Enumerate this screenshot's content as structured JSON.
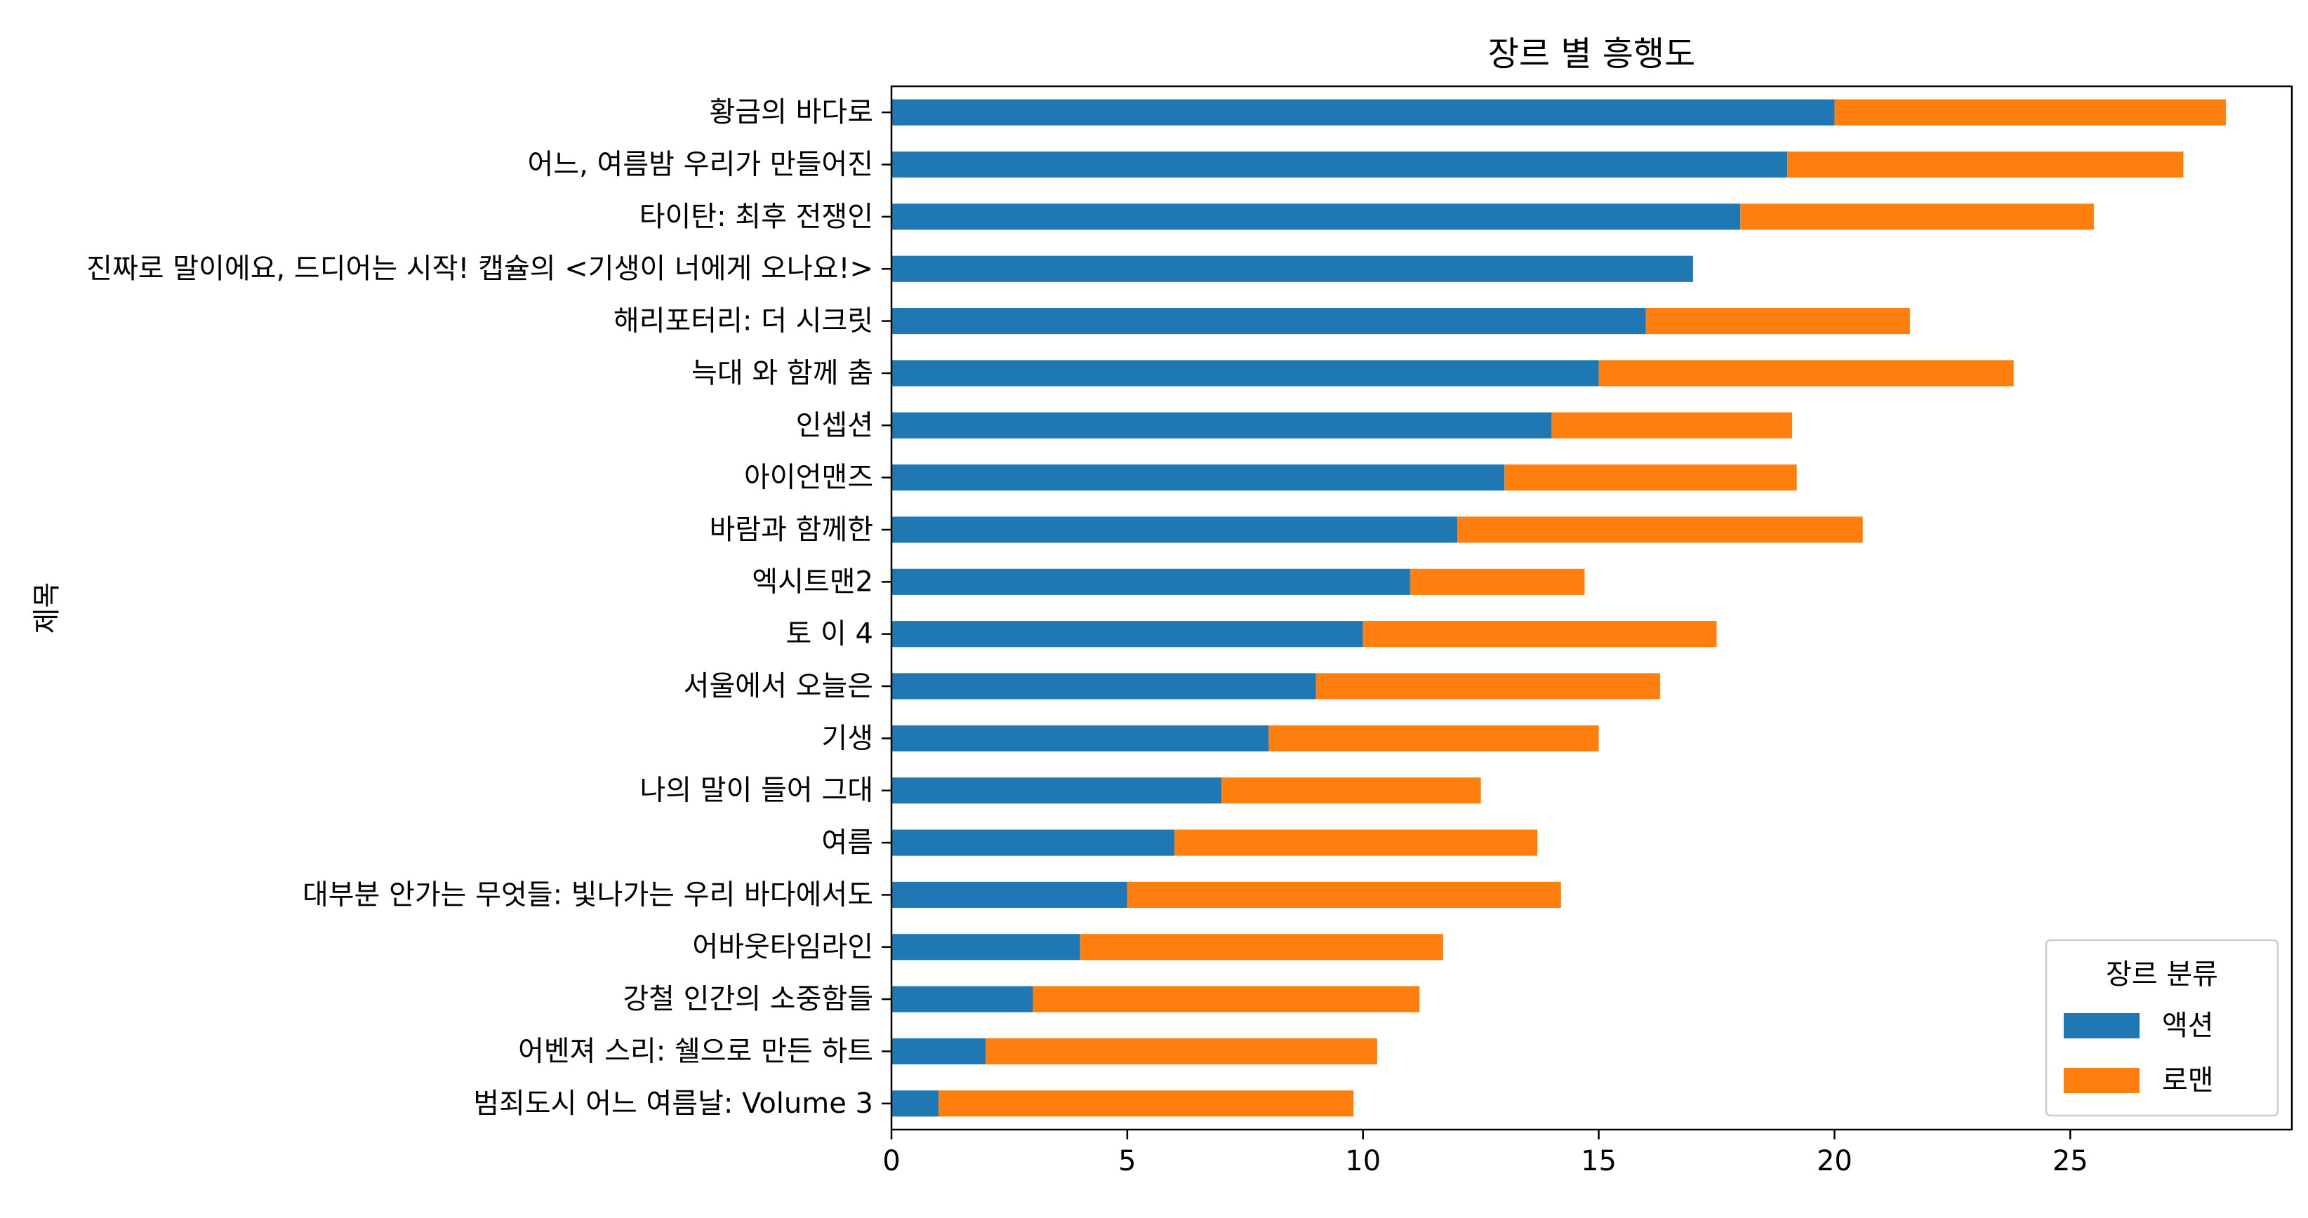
{
  "chart_data": {
    "type": "bar",
    "orientation": "horizontal",
    "stacked": true,
    "title": "장르 별 흥행도",
    "ylabel": "제목",
    "xlabel": "",
    "xlim": [
      0,
      29.7
    ],
    "xticks": [
      0,
      5,
      10,
      15,
      20,
      25
    ],
    "grid": false,
    "legend": {
      "title": "장르 분류",
      "placement": "bottom-right"
    },
    "categories": [
      "범죄도시 어느 여름날: Volume 3",
      "어벤져 스리: 쉘으로 만든 하트",
      "강철 인간의 소중함들",
      "어바웃타임라인",
      "대부분 안가는 무엇들: 빛나가는 우리 바다에서도",
      "여름",
      "나의 말이 들어 그대",
      "기생",
      "서울에서 오늘은",
      "토 이 4",
      "엑시트맨2",
      "바람과 함께한",
      "아이언맨즈",
      "인셉션",
      "늑대 와 함께 춤",
      "해리포터리: 더 시크릿",
      "진짜로 말이에요, 드디어는 시작! 캡슐의 <기생이 너에게 오나요!>",
      "타이탄: 최후 전쟁인",
      "어느, 여름밤 우리가 만들어진",
      "황금의 바다로"
    ],
    "series": [
      {
        "name": "액션",
        "color": "#1f77b4",
        "values": [
          1,
          2,
          3,
          4,
          5,
          6,
          7,
          8,
          9,
          10,
          11,
          12,
          13,
          14,
          15,
          16,
          17,
          18,
          19,
          20
        ]
      },
      {
        "name": "로맨",
        "color": "#ff7f0e",
        "values": [
          8.8,
          8.3,
          8.2,
          7.7,
          9.2,
          7.7,
          5.5,
          7.0,
          7.3,
          7.5,
          3.7,
          8.6,
          6.2,
          5.1,
          8.8,
          5.6,
          0,
          7.5,
          8.4,
          8.3
        ]
      }
    ]
  }
}
